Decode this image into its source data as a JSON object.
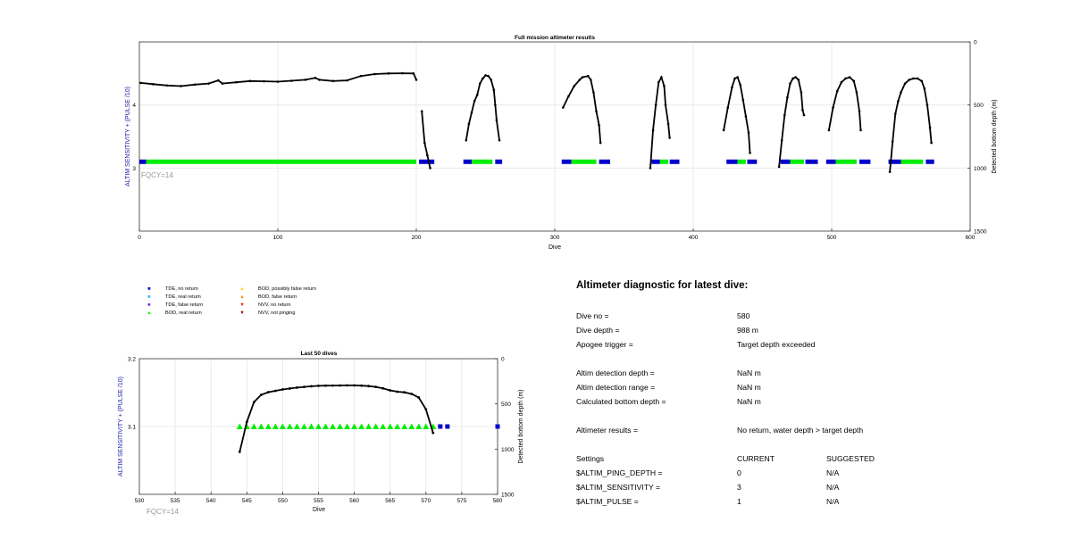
{
  "chart_data": [
    {
      "type": "scatter",
      "title": "Full mission altimeter results",
      "xlabel": "Dive",
      "ylabel": "ALTIM SENSITIVITY + (PULSE /10)",
      "y2label": "Detected bottom depth (m)",
      "xlim": [
        0,
        600
      ],
      "ylim": [
        2,
        5
      ],
      "y2lim": [
        1500,
        0
      ],
      "xticks": [
        0,
        100,
        200,
        300,
        400,
        500,
        600
      ],
      "yticks": [
        3,
        4
      ],
      "y2ticks": [
        0,
        500,
        1000,
        1500
      ],
      "grid": true,
      "annotation": "FQCY=14",
      "series": [
        {
          "name": "TDE, no return",
          "color": "#0000cc",
          "marker": "square",
          "segments": [
            [
              0,
              5
            ],
            [
              202,
              213
            ],
            [
              234,
              240
            ],
            [
              257,
              262
            ],
            [
              305,
              312
            ],
            [
              332,
              340
            ],
            [
              370,
              376
            ],
            [
              383,
              390
            ],
            [
              424,
              432
            ],
            [
              439,
              446
            ],
            [
              463,
              470
            ],
            [
              481,
              490
            ],
            [
              496,
              503
            ],
            [
              520,
              528
            ],
            [
              541,
              550
            ],
            [
              568,
              574
            ]
          ]
        },
        {
          "name": "BOD, real return",
          "color": "#00ee00",
          "marker": "triangle",
          "segments": [
            [
              5,
              200
            ],
            [
              240,
              255
            ],
            [
              312,
              330
            ],
            [
              376,
              382
            ],
            [
              432,
              438
            ],
            [
              470,
              480
            ],
            [
              503,
              518
            ],
            [
              550,
              566
            ]
          ]
        },
        {
          "name": "Detected bottom depth",
          "color": "#000000",
          "marker": "dot",
          "lines": [
            [
              [
                1,
                325
              ],
              [
                10,
                335
              ],
              [
                20,
                345
              ],
              [
                30,
                350
              ],
              [
                40,
                338
              ],
              [
                50,
                330
              ],
              [
                57,
                305
              ],
              [
                60,
                330
              ],
              [
                70,
                320
              ],
              [
                80,
                310
              ],
              [
                90,
                312
              ],
              [
                100,
                315
              ],
              [
                110,
                308
              ],
              [
                120,
                300
              ],
              [
                127,
                285
              ],
              [
                130,
                300
              ],
              [
                140,
                310
              ],
              [
                150,
                305
              ],
              [
                160,
                270
              ],
              [
                170,
                255
              ],
              [
                180,
                250
              ],
              [
                190,
                248
              ],
              [
                198,
                250
              ],
              [
                200,
                300
              ]
            ],
            [
              [
                204,
                550
              ],
              [
                206,
                800
              ],
              [
                208,
                900
              ],
              [
                210,
                1000
              ]
            ],
            [
              [
                236,
                780
              ],
              [
                238,
                650
              ],
              [
                240,
                560
              ],
              [
                242,
                470
              ],
              [
                244,
                420
              ],
              [
                246,
                330
              ],
              [
                248,
                290
              ],
              [
                250,
                265
              ],
              [
                252,
                270
              ],
              [
                254,
                300
              ],
              [
                256,
                380
              ],
              [
                257,
                500
              ],
              [
                258,
                620
              ],
              [
                260,
                780
              ]
            ],
            [
              [
                306,
                520
              ],
              [
                310,
                430
              ],
              [
                314,
                350
              ],
              [
                318,
                300
              ],
              [
                320,
                280
              ],
              [
                324,
                270
              ],
              [
                326,
                300
              ],
              [
                328,
                400
              ],
              [
                330,
                550
              ],
              [
                332,
                660
              ],
              [
                333,
                800
              ]
            ],
            [
              [
                369,
                1000
              ],
              [
                371,
                700
              ],
              [
                373,
                500
              ],
              [
                375,
                320
              ],
              [
                377,
                280
              ],
              [
                379,
                350
              ],
              [
                380,
                500
              ],
              [
                382,
                650
              ],
              [
                383,
                760
              ]
            ],
            [
              [
                422,
                700
              ],
              [
                425,
                520
              ],
              [
                428,
                360
              ],
              [
                430,
                290
              ],
              [
                432,
                280
              ],
              [
                434,
                340
              ],
              [
                436,
                460
              ],
              [
                438,
                590
              ],
              [
                440,
                720
              ],
              [
                441,
                880
              ]
            ],
            [
              [
                462,
                990
              ],
              [
                464,
                780
              ],
              [
                466,
                580
              ],
              [
                468,
                440
              ],
              [
                470,
                330
              ],
              [
                472,
                290
              ],
              [
                474,
                280
              ],
              [
                476,
                300
              ],
              [
                478,
                400
              ],
              [
                479,
                540
              ],
              [
                480,
                580
              ]
            ],
            [
              [
                498,
                700
              ],
              [
                501,
                520
              ],
              [
                504,
                390
              ],
              [
                507,
                320
              ],
              [
                510,
                290
              ],
              [
                513,
                280
              ],
              [
                516,
                310
              ],
              [
                518,
                400
              ],
              [
                520,
                550
              ],
              [
                521,
                700
              ]
            ],
            [
              [
                542,
                1030
              ],
              [
                544,
                790
              ],
              [
                546,
                570
              ],
              [
                548,
                470
              ],
              [
                550,
                400
              ],
              [
                553,
                330
              ],
              [
                556,
                300
              ],
              [
                559,
                290
              ],
              [
                562,
                290
              ],
              [
                565,
                310
              ],
              [
                567,
                370
              ],
              [
                569,
                500
              ],
              [
                571,
                680
              ],
              [
                572,
                800
              ]
            ]
          ]
        }
      ]
    },
    {
      "type": "scatter",
      "title": "Last 50 dives",
      "xlabel": "Dive",
      "ylabel": "ALTIM SENSITIVITY + (PULSE /10)",
      "y2label": "Detected bottom depth (m)",
      "xlim": [
        530,
        580
      ],
      "ylim": [
        3.0,
        3.2
      ],
      "y2lim": [
        1500,
        0
      ],
      "xticks": [
        530,
        535,
        540,
        545,
        550,
        555,
        560,
        565,
        570,
        575,
        580
      ],
      "yticks": [
        3.1,
        3.2
      ],
      "y2ticks": [
        0,
        500,
        1000,
        1500
      ],
      "grid": true,
      "annotation": "FQCY=14",
      "series": [
        {
          "name": "BOD, real return",
          "color": "#00ee00",
          "marker": "triangle",
          "x": [
            544,
            545,
            546,
            547,
            548,
            549,
            550,
            551,
            552,
            553,
            554,
            555,
            556,
            557,
            558,
            559,
            560,
            561,
            562,
            563,
            564,
            565,
            566,
            567,
            568,
            569,
            570,
            571
          ],
          "y": [
            3.1,
            3.1,
            3.1,
            3.1,
            3.1,
            3.1,
            3.1,
            3.1,
            3.1,
            3.1,
            3.1,
            3.1,
            3.1,
            3.1,
            3.1,
            3.1,
            3.1,
            3.1,
            3.1,
            3.1,
            3.1,
            3.1,
            3.1,
            3.1,
            3.1,
            3.1,
            3.1,
            3.1
          ]
        },
        {
          "name": "TDE, no return",
          "color": "#0000cc",
          "marker": "square",
          "x": [
            572,
            573,
            580
          ],
          "y": [
            3.1,
            3.1,
            3.1
          ]
        },
        {
          "name": "Detected bottom depth",
          "color": "#000000",
          "marker": "dot",
          "x": [
            544,
            545,
            546,
            547,
            548,
            549,
            550,
            551,
            552,
            553,
            554,
            555,
            556,
            557,
            558,
            559,
            560,
            561,
            562,
            563,
            564,
            565,
            566,
            567,
            568,
            569,
            570,
            571
          ],
          "y2": [
            1030,
            700,
            480,
            400,
            370,
            355,
            340,
            330,
            320,
            312,
            305,
            300,
            298,
            297,
            296,
            295,
            295,
            298,
            303,
            312,
            328,
            350,
            365,
            372,
            390,
            430,
            560,
            820
          ]
        }
      ]
    }
  ],
  "legend": {
    "items": [
      {
        "label": "TDE, no return",
        "symbol": "■",
        "color": "#0000cc"
      },
      {
        "label": "TDE, real return",
        "symbol": "■",
        "color": "#33bbee"
      },
      {
        "label": "TDE, false return",
        "symbol": "■",
        "color": "#7733cc"
      },
      {
        "label": "BOD, real return",
        "symbol": "▲",
        "color": "#00ee00"
      },
      {
        "label": "BOD, possibly false return",
        "symbol": "▲",
        "color": "#ffcc00"
      },
      {
        "label": "BOD, false return",
        "symbol": "▲",
        "color": "#ff8800"
      },
      {
        "label": "NVV, no return",
        "symbol": "▼",
        "color": "#dd2200"
      },
      {
        "label": "NVV, not pinging",
        "symbol": "▼",
        "color": "#880000"
      }
    ]
  },
  "diagnostic": {
    "title": "Altimeter diagnostic for latest dive:",
    "dive_no_label": "Dive no =",
    "dive_no": "580",
    "dive_depth_label": "Dive depth =",
    "dive_depth": "988 m",
    "apogee_label": "Apogee trigger =",
    "apogee": "Target depth exceeded",
    "det_depth_label": "Altim detection depth =",
    "det_depth": "NaN m",
    "det_range_label": "Altim detection range =",
    "det_range": "NaN m",
    "calc_depth_label": "Calculated bottom depth =",
    "calc_depth": "NaN m",
    "results_label": "Altimeter results =",
    "results": "No return, water depth > target depth",
    "settings_label": "Settings",
    "current_label": "CURRENT",
    "suggested_label": "SUGGESTED",
    "ping_label": "$ALTIM_PING_DEPTH =",
    "ping_current": "0",
    "ping_suggested": "N/A",
    "sens_label": "$ALTIM_SENSITIVITY =",
    "sens_current": "3",
    "sens_suggested": "N/A",
    "pulse_label": "$ALTIM_PULSE =",
    "pulse_current": "1",
    "pulse_suggested": "N/A"
  }
}
